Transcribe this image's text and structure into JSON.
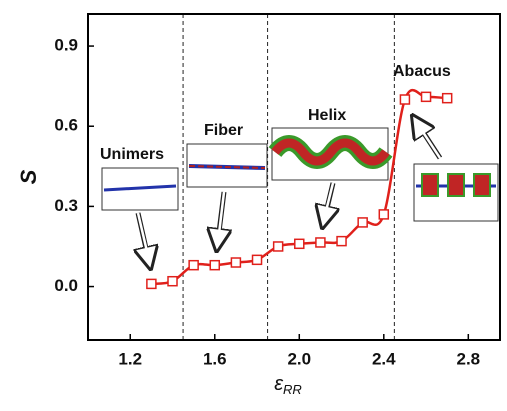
{
  "chart_data": {
    "type": "line",
    "xlabel": "ε",
    "xlabel_sub": "RR",
    "ylabel": "S",
    "x": [
      1.3,
      1.4,
      1.5,
      1.6,
      1.7,
      1.8,
      1.9,
      2.0,
      2.1,
      2.2,
      2.3,
      2.4,
      2.5,
      2.6,
      2.7
    ],
    "series": [
      {
        "values": [
          0.01,
          0.02,
          0.08,
          0.08,
          0.09,
          0.1,
          0.15,
          0.16,
          0.165,
          0.17,
          0.24,
          0.27,
          0.7,
          0.71,
          0.705
        ],
        "color": "#e0201b"
      }
    ],
    "xlim": [
      1.0,
      2.95
    ],
    "ylim": [
      -0.2,
      1.02
    ],
    "xticks": [
      1.2,
      1.6,
      {
        "value": 2,
        "label": "2.0"
      },
      2.4,
      2.8
    ],
    "yticks": [
      {
        "value": 0,
        "label": "0.0"
      },
      0.3,
      0.6,
      0.9
    ],
    "vlines": [
      1.45,
      1.85,
      2.45
    ],
    "annotations": [
      "Unimers",
      "Fiber",
      "Helix",
      "Abacus"
    ]
  }
}
